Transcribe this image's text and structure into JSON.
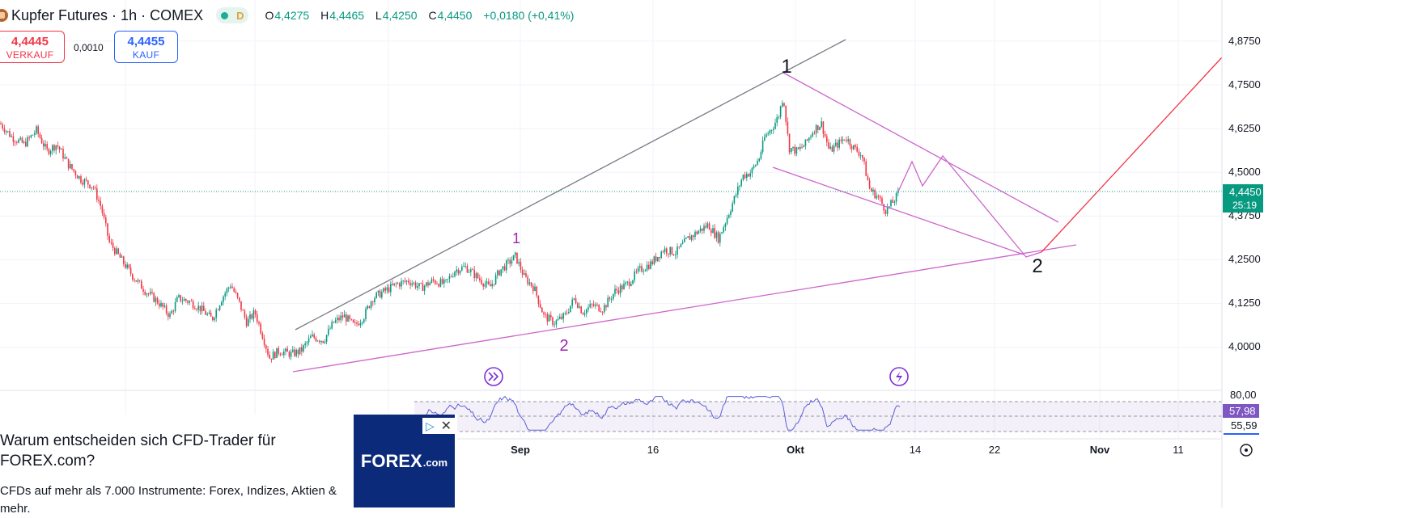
{
  "header": {
    "symbol_title": "Kupfer Futures · 1h · COMEX",
    "status_flag": "D",
    "ohlc": [
      {
        "key": "O",
        "value": "4,4275"
      },
      {
        "key": "H",
        "value": "4,4465"
      },
      {
        "key": "L",
        "value": "4,4250"
      },
      {
        "key": "C",
        "value": "4,4450"
      }
    ],
    "change": "+0,0180 (+0,41%)"
  },
  "trade": {
    "sell_price": "4,4445",
    "sell_label": "VERKAUF",
    "spread": "0,0010",
    "buy_price": "4,4455",
    "buy_label": "KAUF"
  },
  "price_axis": {
    "ticks": [
      "4,8750",
      "4,7500",
      "4,6250",
      "4,5000",
      "4,3750",
      "4,2500",
      "4,1250",
      "4,0000"
    ],
    "current_price": "4,4450",
    "countdown": "25:19"
  },
  "rsi": {
    "ticks": [
      "80,00"
    ],
    "value": "57,98",
    "ma_value": "55,59"
  },
  "time_axis": {
    "labels": [
      "Sep",
      "16",
      "Okt",
      "14",
      "22",
      "Nov",
      "11"
    ]
  },
  "annotations": {
    "wave_major_1": "1",
    "wave_major_2": "2",
    "wave_minor_1": "1",
    "wave_minor_2": "2"
  },
  "ad": {
    "headline": "Warum entscheiden sich CFD-Trader für FOREX.com?",
    "body": "CFDs auf mehr als 7.000 Instrumente: Forex, Indizes, Aktien & mehr.",
    "logo_text": "FOREX",
    "logo_suffix": ".com"
  },
  "colors": {
    "up": "#089981",
    "down": "#f23645",
    "channel": "#cc66cc",
    "trend": "#787b86",
    "projection": "#f23645",
    "rsi_line": "#5b5fd6"
  },
  "chart_data": {
    "type": "candlestick",
    "anchors": [
      [
        0,
        4.64
      ],
      [
        15,
        4.6
      ],
      [
        30,
        4.58
      ],
      [
        45,
        4.62
      ],
      [
        58,
        4.56
      ],
      [
        70,
        4.58
      ],
      [
        85,
        4.52
      ],
      [
        100,
        4.48
      ],
      [
        115,
        4.46
      ],
      [
        125,
        4.4
      ],
      [
        135,
        4.3
      ],
      [
        150,
        4.25
      ],
      [
        165,
        4.2
      ],
      [
        180,
        4.16
      ],
      [
        195,
        4.13
      ],
      [
        210,
        4.09
      ],
      [
        220,
        4.14
      ],
      [
        235,
        4.13
      ],
      [
        248,
        4.11
      ],
      [
        262,
        4.08
      ],
      [
        274,
        4.14
      ],
      [
        285,
        4.18
      ],
      [
        295,
        4.13
      ],
      [
        305,
        4.07
      ],
      [
        315,
        4.1
      ],
      [
        325,
        4.03
      ],
      [
        333,
        3.97
      ],
      [
        345,
        3.99
      ],
      [
        360,
        3.98
      ],
      [
        372,
        3.99
      ],
      [
        385,
        4.03
      ],
      [
        400,
        4.02
      ],
      [
        412,
        4.07
      ],
      [
        425,
        4.09
      ],
      [
        438,
        4.06
      ],
      [
        450,
        4.09
      ],
      [
        460,
        4.14
      ],
      [
        475,
        4.16
      ],
      [
        490,
        4.18
      ],
      [
        505,
        4.19
      ],
      [
        520,
        4.17
      ],
      [
        535,
        4.19
      ],
      [
        550,
        4.18
      ],
      [
        562,
        4.22
      ],
      [
        575,
        4.23
      ],
      [
        590,
        4.2
      ],
      [
        605,
        4.17
      ],
      [
        618,
        4.22
      ],
      [
        628,
        4.24
      ],
      [
        637,
        4.26
      ],
      [
        648,
        4.2
      ],
      [
        660,
        4.17
      ],
      [
        672,
        4.09
      ],
      [
        685,
        4.07
      ],
      [
        698,
        4.09
      ],
      [
        710,
        4.14
      ],
      [
        720,
        4.1
      ],
      [
        732,
        4.12
      ],
      [
        745,
        4.11
      ],
      [
        760,
        4.16
      ],
      [
        775,
        4.18
      ],
      [
        790,
        4.22
      ],
      [
        805,
        4.24
      ],
      [
        820,
        4.28
      ],
      [
        835,
        4.27
      ],
      [
        850,
        4.31
      ],
      [
        862,
        4.33
      ],
      [
        875,
        4.35
      ],
      [
        888,
        4.31
      ],
      [
        900,
        4.38
      ],
      [
        910,
        4.44
      ],
      [
        918,
        4.49
      ],
      [
        928,
        4.5
      ],
      [
        938,
        4.54
      ],
      [
        945,
        4.6
      ],
      [
        955,
        4.63
      ],
      [
        962,
        4.66
      ],
      [
        968,
        4.72
      ],
      [
        975,
        4.57
      ],
      [
        985,
        4.56
      ],
      [
        995,
        4.58
      ],
      [
        1005,
        4.62
      ],
      [
        1015,
        4.64
      ],
      [
        1025,
        4.56
      ],
      [
        1035,
        4.58
      ],
      [
        1045,
        4.6
      ],
      [
        1055,
        4.57
      ],
      [
        1065,
        4.55
      ],
      [
        1075,
        4.45
      ],
      [
        1085,
        4.43
      ],
      [
        1095,
        4.39
      ],
      [
        1105,
        4.42
      ],
      [
        1112,
        4.445
      ]
    ],
    "ylim": [
      3.93,
      4.9
    ],
    "rsi_ylim": [
      20,
      90
    ],
    "rsi_bands": [
      30,
      50,
      70,
      80
    ]
  }
}
